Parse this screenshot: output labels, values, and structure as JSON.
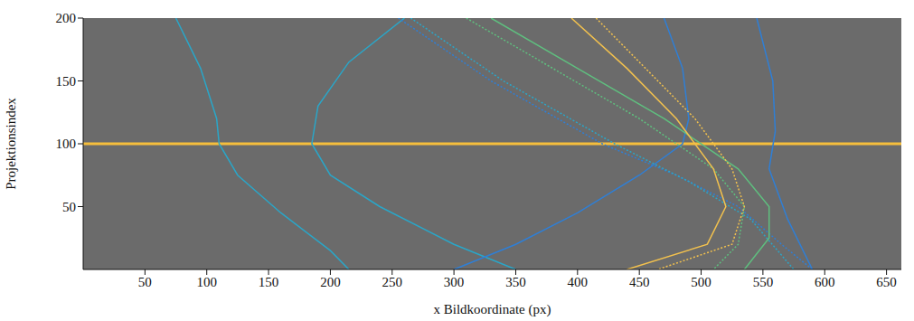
{
  "chart_data": {
    "type": "line",
    "x_label": "x Bildkoordinate (px)",
    "y_label": "Projektionsindex",
    "xlim": [
      0,
      662
    ],
    "ylim": [
      0,
      200
    ],
    "xticks": [
      50,
      100,
      150,
      200,
      250,
      300,
      350,
      400,
      450,
      500,
      550,
      600,
      650
    ],
    "yticks": [
      50,
      100,
      150,
      200
    ],
    "grid": false,
    "hline": {
      "y": 100,
      "color": "#f5be3c"
    },
    "series": [
      {
        "color": "#2aa6c8",
        "line_style": "solid",
        "x": [
          75,
          95,
          108,
          110,
          125,
          160,
          200,
          215
        ],
        "y": [
          200,
          160,
          120,
          100,
          75,
          45,
          15,
          0
        ]
      },
      {
        "color": "#2aa6c8",
        "line_style": "solid",
        "x": [
          260,
          215,
          190,
          185,
          200,
          240,
          300,
          350
        ],
        "y": [
          200,
          165,
          130,
          100,
          75,
          50,
          20,
          0
        ]
      },
      {
        "color": "#2f7fd6",
        "line_style": "solid",
        "x": [
          470,
          485,
          490,
          485,
          450,
          400,
          350,
          300
        ],
        "y": [
          200,
          160,
          120,
          100,
          75,
          45,
          20,
          0
        ]
      },
      {
        "color": "#2f7fd6",
        "line_style": "solid",
        "x": [
          545,
          558,
          560,
          555,
          570,
          590
        ],
        "y": [
          200,
          150,
          110,
          80,
          40,
          0
        ]
      },
      {
        "color": "#2f7fd6",
        "line_style": "dotted",
        "x": [
          255,
          330,
          420,
          480,
          530,
          565,
          590
        ],
        "y": [
          200,
          150,
          100,
          75,
          50,
          20,
          0
        ]
      },
      {
        "color": "#2aa6c8",
        "line_style": "dotted",
        "x": [
          265,
          340,
          430,
          490,
          540,
          575
        ],
        "y": [
          200,
          150,
          100,
          70,
          40,
          0
        ]
      },
      {
        "color": "#5fbf7f",
        "line_style": "dotted",
        "x": [
          310,
          380,
          450,
          510,
          535,
          530,
          510
        ],
        "y": [
          200,
          160,
          120,
          80,
          50,
          20,
          0
        ]
      },
      {
        "color": "#5fbf7f",
        "line_style": "solid",
        "x": [
          330,
          400,
          470,
          530,
          555,
          555,
          535
        ],
        "y": [
          200,
          160,
          120,
          80,
          50,
          25,
          0
        ]
      },
      {
        "color": "#f2c14e",
        "line_style": "solid",
        "x": [
          395,
          440,
          480,
          510,
          520,
          505,
          440
        ],
        "y": [
          200,
          160,
          120,
          80,
          50,
          20,
          0
        ]
      },
      {
        "color": "#f2c14e",
        "line_style": "dotted",
        "x": [
          415,
          455,
          495,
          525,
          535,
          525,
          465
        ],
        "y": [
          200,
          160,
          120,
          80,
          50,
          20,
          0
        ]
      }
    ]
  }
}
